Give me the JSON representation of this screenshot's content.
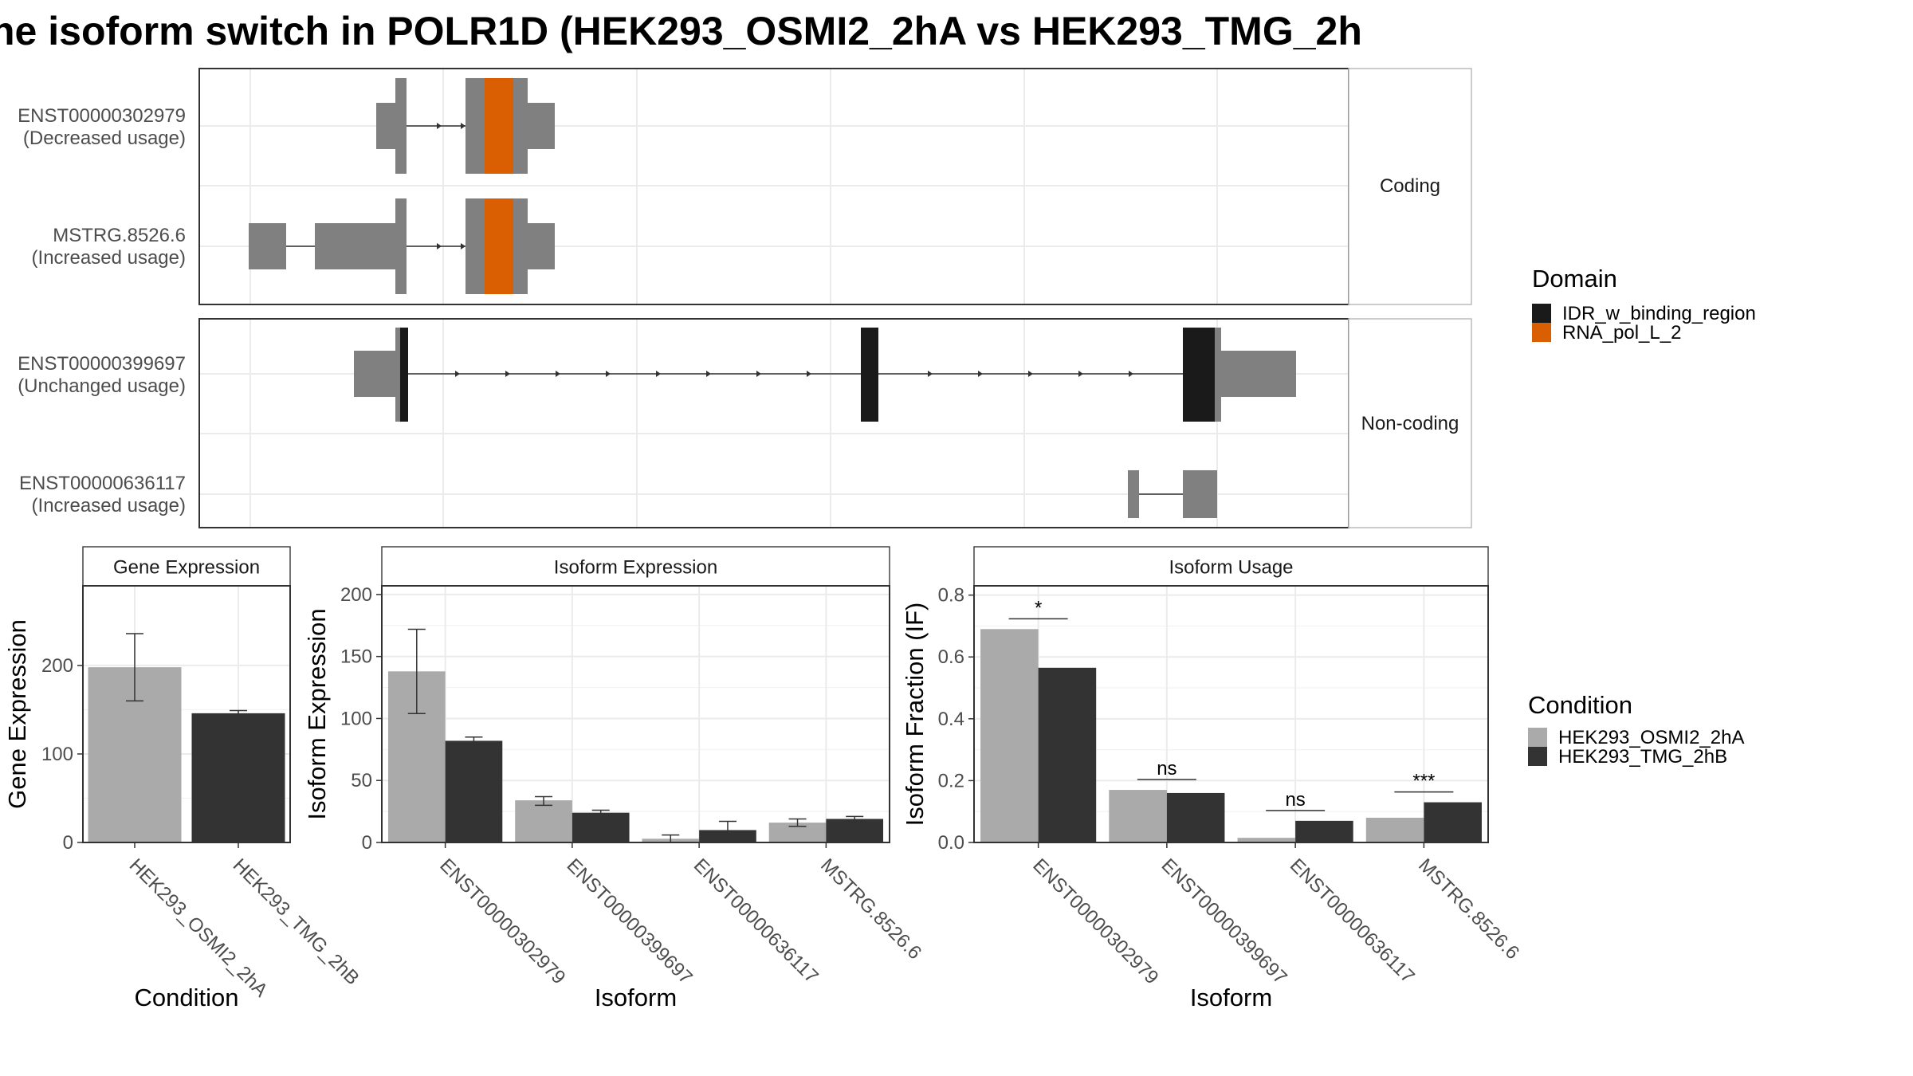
{
  "title": "ne isoform switch in POLR1D (HEK293_OSMI2_2hA vs HEK293_TMG_2h",
  "colors": {
    "domain_IDR_w_binding_region": "#1a1a1a",
    "domain_RNA_pol_L_2": "#d95f02",
    "transcript": "#808080",
    "condition_HEK293_OSMI2_2hA": "#aaaaaa",
    "condition_HEK293_TMG_2hB": "#333333",
    "grid": "#ebebeb",
    "panel_border": "#333333"
  },
  "structure_panel": {
    "strips": [
      "Coding",
      "Non-coding"
    ],
    "transcripts": [
      {
        "id": "ENST00000302979",
        "usage": "(Decreased usage)",
        "group": "Coding"
      },
      {
        "id": "MSTRG.8526.6",
        "usage": "(Increased usage)",
        "group": "Coding"
      },
      {
        "id": "ENST00000399697",
        "usage": "(Unchanged usage)",
        "group": "Non-coding"
      },
      {
        "id": "ENST00000636117",
        "usage": "(Increased usage)",
        "group": "Non-coding"
      }
    ]
  },
  "legends": {
    "domain": {
      "title": "Domain",
      "items": [
        "IDR_w_binding_region",
        "RNA_pol_L_2"
      ]
    },
    "condition": {
      "title": "Condition",
      "items": [
        "HEK293_OSMI2_2hA",
        "HEK293_TMG_2hB"
      ]
    }
  },
  "chart_data": [
    {
      "type": "bar",
      "title": "Gene Expression",
      "xlabel": "Condition",
      "ylabel": "Gene Expression",
      "categories": [
        "HEK293_OSMI2_2hA",
        "HEK293_TMG_2hB"
      ],
      "values": [
        198,
        146
      ],
      "errors": [
        [
          160,
          236
        ],
        [
          143,
          149
        ]
      ],
      "ylim": [
        0,
        290
      ],
      "yticks": [
        "0",
        "100",
        "200"
      ]
    },
    {
      "type": "bar",
      "title": "Isoform Expression",
      "xlabel": "Isoform",
      "ylabel": "Isoform Expression",
      "categories": [
        "ENST00000302979",
        "ENST00000399697",
        "ENST00000636117",
        "MSTRG.8526.6"
      ],
      "series": [
        {
          "name": "HEK293_OSMI2_2hA",
          "values": [
            138,
            34,
            3,
            16
          ],
          "errors": [
            [
              104,
              172
            ],
            [
              30,
              37
            ],
            [
              0,
              6
            ],
            [
              13,
              19
            ]
          ]
        },
        {
          "name": "HEK293_TMG_2hB",
          "values": [
            82,
            24,
            10,
            19
          ],
          "errors": [
            [
              79,
              85
            ],
            [
              22,
              26
            ],
            [
              4,
              17
            ],
            [
              17,
              21
            ]
          ]
        }
      ],
      "ylim": [
        0,
        207
      ],
      "yticks": [
        "0",
        "50",
        "100",
        "150",
        "200"
      ]
    },
    {
      "type": "bar",
      "title": "Isoform Usage",
      "xlabel": "Isoform",
      "ylabel": "Isoform Fraction (IF)",
      "categories": [
        "ENST00000302979",
        "ENST00000399697",
        "ENST00000636117",
        "MSTRG.8526.6"
      ],
      "series": [
        {
          "name": "HEK293_OSMI2_2hA",
          "values": [
            0.69,
            0.17,
            0.015,
            0.08
          ]
        },
        {
          "name": "HEK293_TMG_2hB",
          "values": [
            0.565,
            0.16,
            0.07,
            0.13
          ]
        }
      ],
      "significance": [
        "*",
        "ns",
        "ns",
        "***"
      ],
      "ylim": [
        0,
        0.83
      ],
      "yticks": [
        "0.0",
        "0.2",
        "0.4",
        "0.6",
        "0.8"
      ]
    }
  ]
}
